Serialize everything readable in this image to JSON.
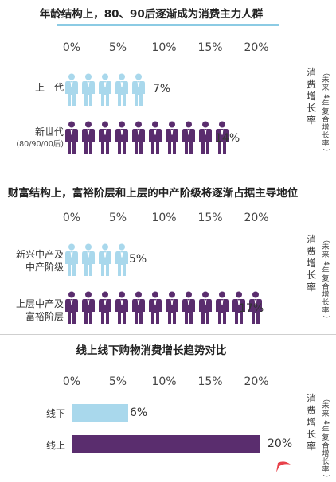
{
  "colors": {
    "light": "#a9d8ec",
    "dark": "#5a2d6e",
    "title_underline": "#8ccbe4",
    "flag": "#e8414a"
  },
  "axis_ticks": [
    "0%",
    "5%",
    "10%",
    "15%",
    "20%"
  ],
  "side_label": "消费增长率",
  "side_note": "（未来4年复合增长率）",
  "chart_data": [
    {
      "type": "bar",
      "title": "年龄结构上，80、90后逐渐成为消费主力人群",
      "categories": [
        "上一代",
        "新世代(80/90/00后)"
      ],
      "category_main": [
        "上一代",
        "新世代"
      ],
      "category_sub": [
        "",
        "(80/90/00后)"
      ],
      "values": [
        7,
        14
      ],
      "value_labels": [
        "7%",
        "14%"
      ],
      "xlim": [
        0,
        20
      ],
      "ylabel": "消费增长率（未来4年复合增长率）"
    },
    {
      "type": "bar",
      "title": "财富结构上，富裕阶层和上层的中产阶级将逐渐占据主导地位",
      "categories": [
        "新兴中产及中产阶级",
        "上层中产及富裕阶层"
      ],
      "category_lines": [
        [
          "新兴中产及",
          "中产阶级"
        ],
        [
          "上层中产及",
          "富裕阶层"
        ]
      ],
      "values": [
        5,
        17
      ],
      "value_labels": [
        "5%",
        "17%"
      ],
      "xlim": [
        0,
        20
      ],
      "ylabel": "消费增长率（未来4年复合增长率）"
    },
    {
      "type": "bar",
      "title": "线上线下购物消费增长趋势对比",
      "categories": [
        "线下",
        "线上"
      ],
      "values": [
        6,
        20
      ],
      "value_labels": [
        "6%",
        "20%"
      ],
      "xlim": [
        0,
        20
      ],
      "ylabel": "消费增长率（未来4年复合增长率）"
    }
  ]
}
